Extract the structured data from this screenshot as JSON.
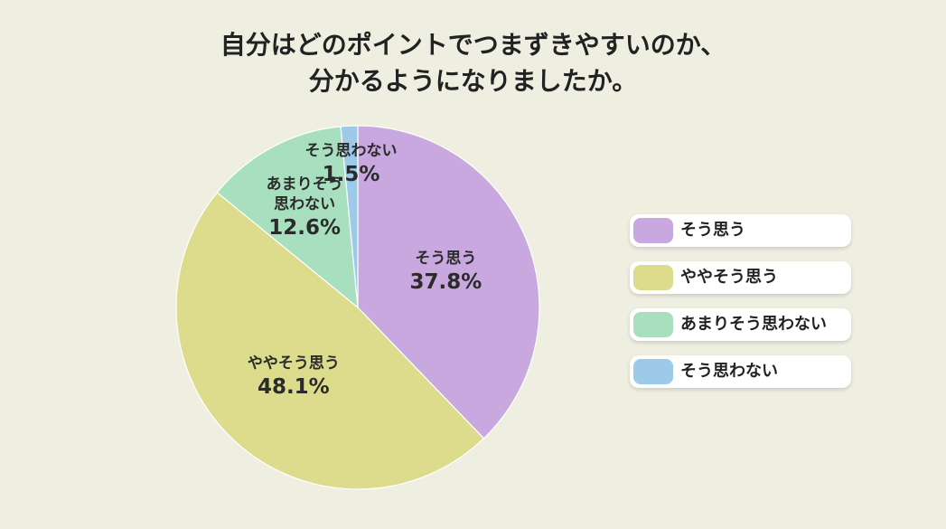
{
  "chart_data": {
    "type": "pie",
    "title": [
      "自分はどのポイントでつまずきやすいのか、",
      "分かるようになりましたか。"
    ],
    "categories": [
      "そう思う",
      "ややそう思う",
      "あまりそう思わない",
      "そう思わない"
    ],
    "values": [
      37.8,
      48.1,
      12.6,
      1.5
    ],
    "value_labels": [
      "37.8%",
      "48.1%",
      "12.6%",
      "1.5%"
    ],
    "colors": [
      "#c9a7df",
      "#dcdc8c",
      "#a8dfbf",
      "#9ccae8"
    ],
    "legend": "right"
  }
}
